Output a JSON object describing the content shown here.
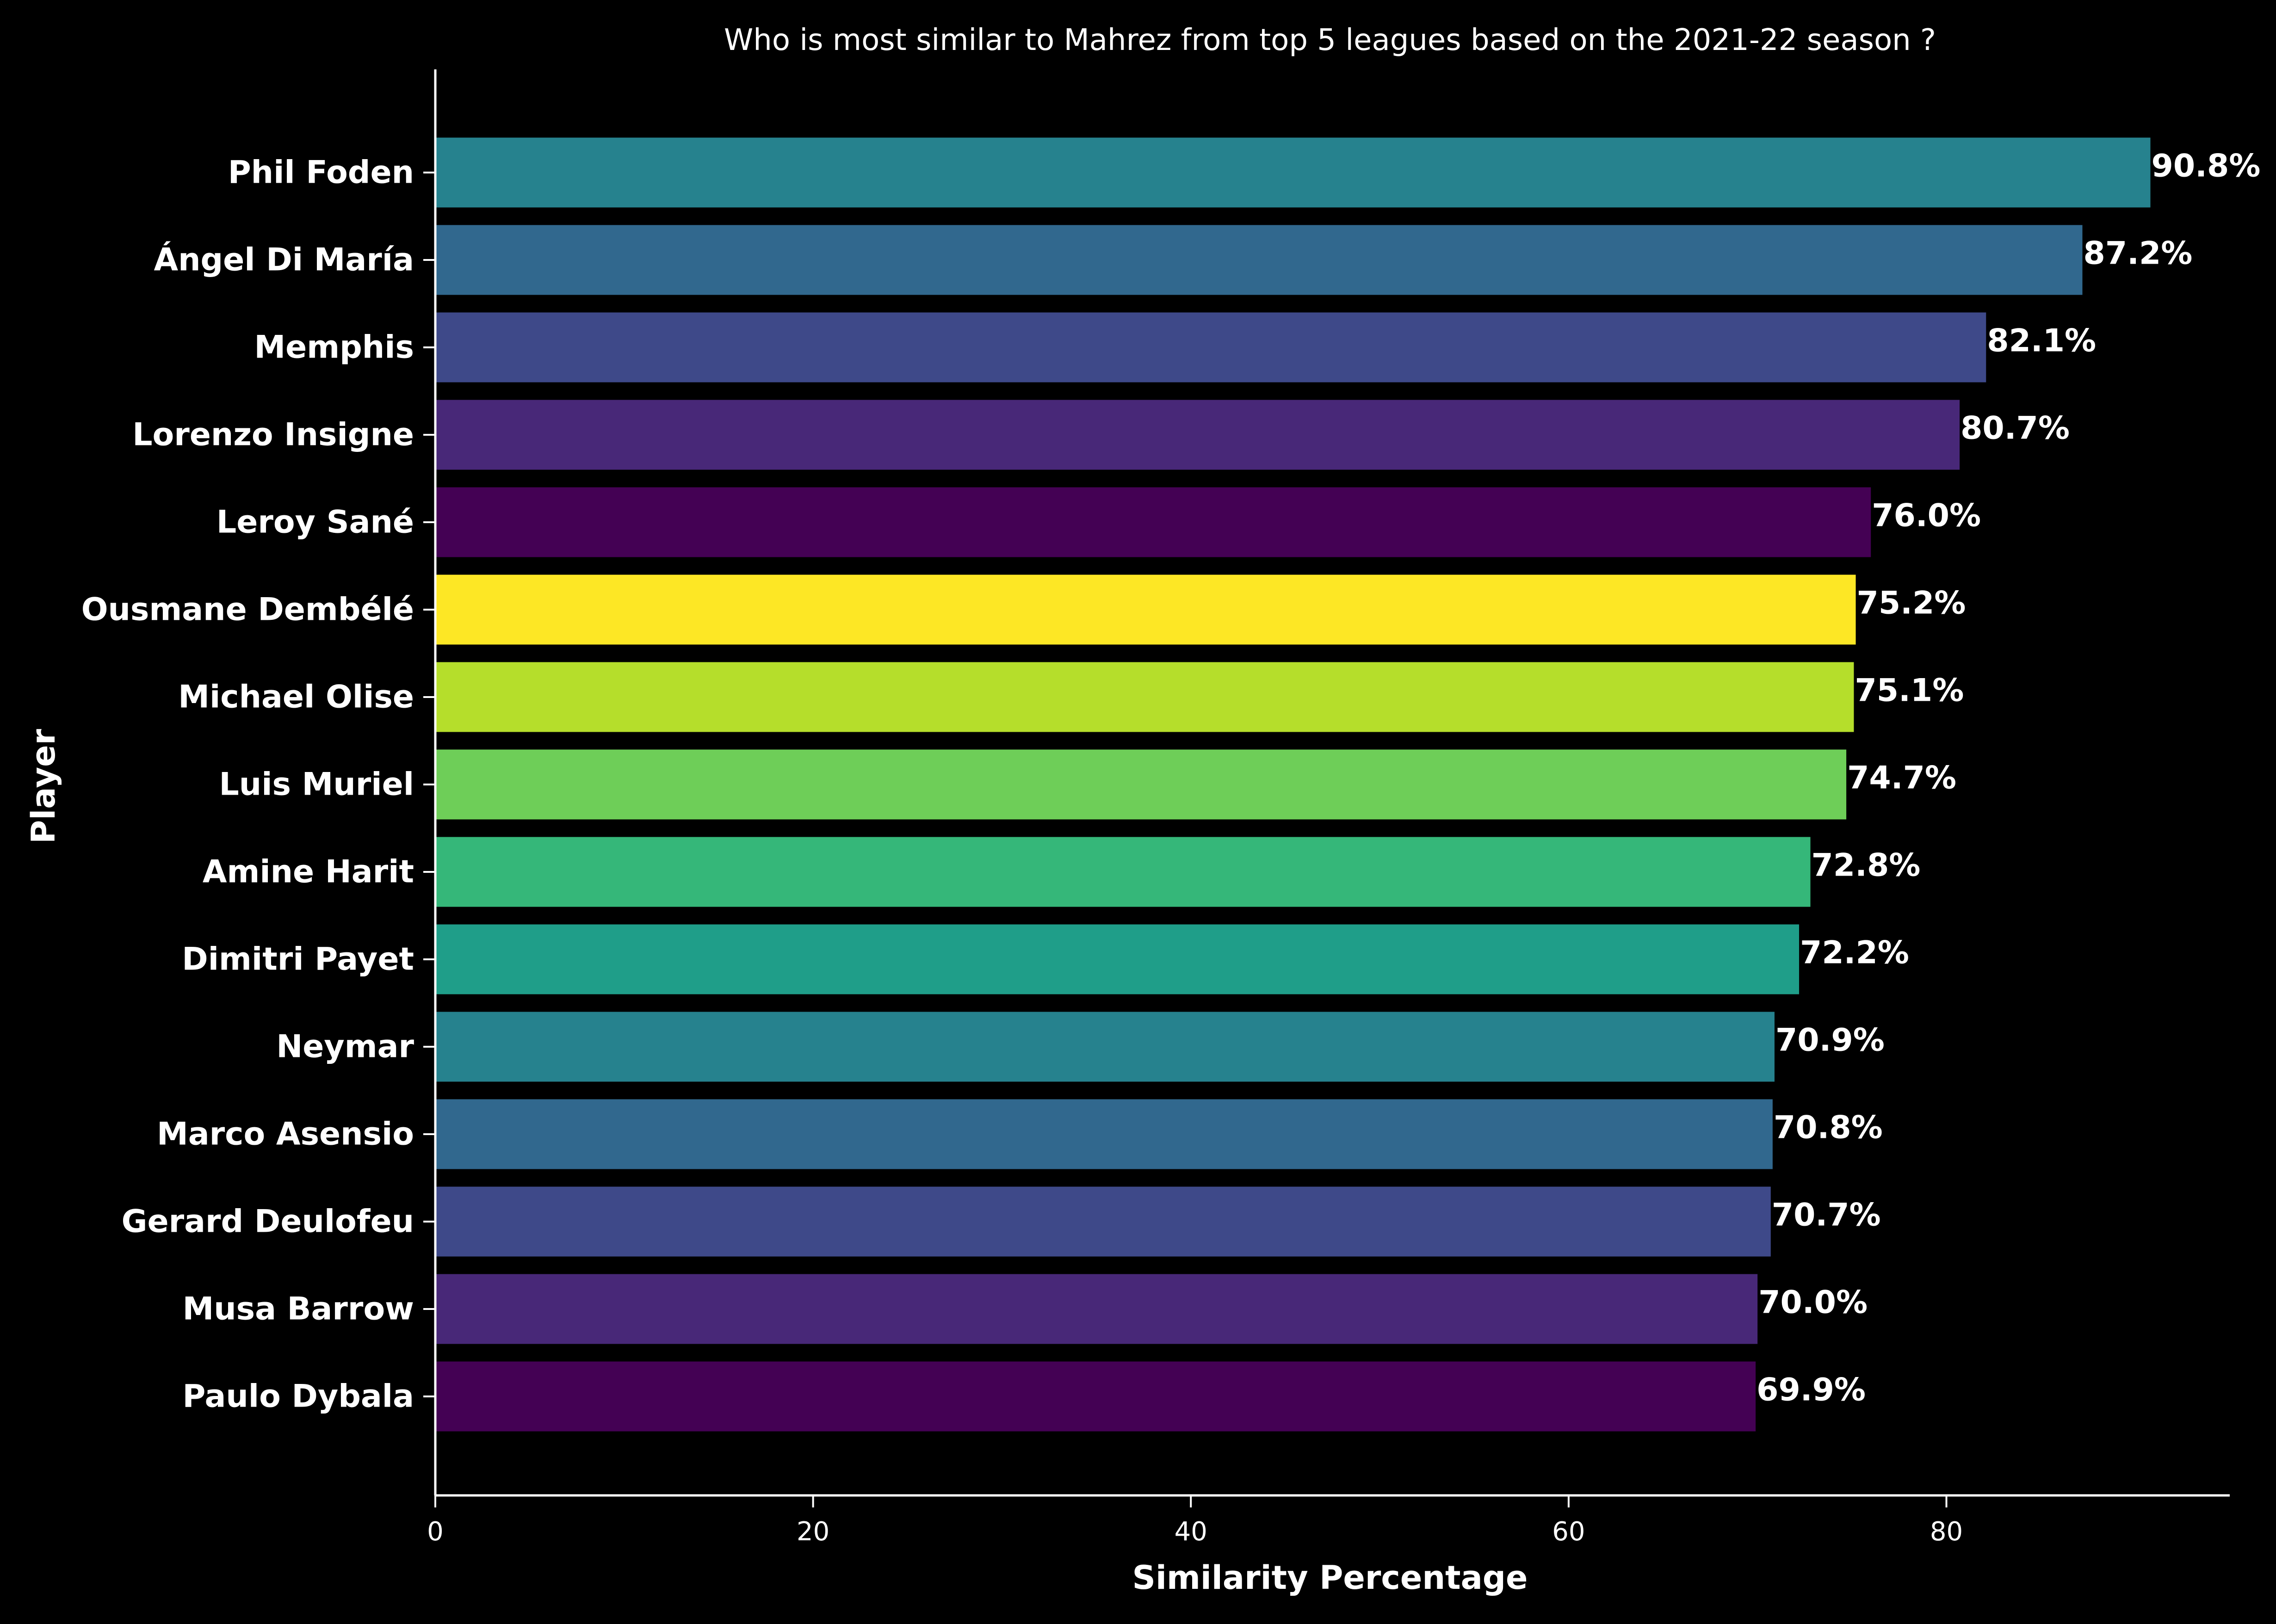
{
  "chart_data": {
    "type": "bar",
    "orientation": "horizontal",
    "title": "Who is most similar to Mahrez from top 5 leagues based on the 2021-22 season ?",
    "xlabel": "Similarity Percentage",
    "ylabel": "Player",
    "xlim": [
      0,
      95
    ],
    "xticks": [
      0,
      20,
      40,
      60,
      80
    ],
    "grid": false,
    "legend": "none",
    "categories": [
      "Phil Foden",
      "Ángel Di María",
      "Memphis",
      "Lorenzo Insigne",
      "Leroy Sané",
      "Ousmane Dembélé",
      "Michael Olise",
      "Luis Muriel",
      "Amine Harit",
      "Dimitri Payet",
      "Neymar",
      "Marco Asensio",
      "Gerard Deulofeu",
      "Musa Barrow",
      "Paulo Dybala"
    ],
    "values": [
      90.8,
      87.2,
      82.1,
      80.7,
      76.0,
      75.2,
      75.1,
      74.7,
      72.8,
      72.2,
      70.9,
      70.8,
      70.7,
      70.0,
      69.9
    ],
    "data_labels": [
      "90.8%",
      "87.2%",
      "82.1%",
      "80.7%",
      "76.0%",
      "75.2%",
      "75.1%",
      "74.7%",
      "72.8%",
      "72.2%",
      "70.9%",
      "70.8%",
      "70.7%",
      "70.0%",
      "69.9%"
    ],
    "colors": [
      "#26828e",
      "#31688e",
      "#3e4989",
      "#482878",
      "#440154",
      "#fde725",
      "#b5de2b",
      "#6ece58",
      "#35b779",
      "#1f9e89",
      "#26828e",
      "#31688e",
      "#3e4989",
      "#482878",
      "#440154"
    ],
    "background": "#000000",
    "text_color": "#ffffff"
  }
}
